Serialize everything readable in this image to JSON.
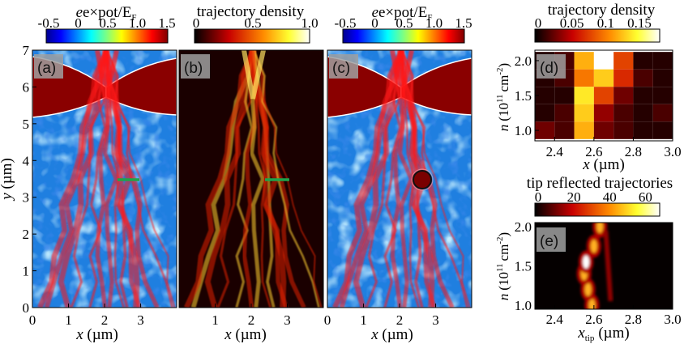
{
  "chart_data": [
    {
      "id": "a",
      "type": "heatmap",
      "panel_label": "(a)",
      "colorbar": {
        "title": "e×pot/E_F",
        "title_main": "e×pot/E",
        "title_sub": "F",
        "ticks": [
          "-0.5",
          "0",
          "0.5",
          "1.0",
          "1.5"
        ],
        "range": [
          -0.5,
          1.5
        ],
        "colormap": "jet"
      },
      "xlabel": "x (µm)",
      "ylabel": "y (µm)",
      "xticks": [
        "0",
        "1",
        "2",
        "3"
      ],
      "yticks": [
        "0",
        "1",
        "2",
        "3",
        "4",
        "5",
        "6",
        "7"
      ],
      "xlim": [
        0,
        4
      ],
      "ylim": [
        0,
        7
      ],
      "tip_marker": {
        "x": 2.6,
        "y": 3.5
      }
    },
    {
      "id": "b",
      "type": "heatmap",
      "panel_label": "(b)",
      "colorbar": {
        "title": "trajectory density",
        "ticks": [
          "0",
          "0.5",
          "1.0"
        ],
        "range": [
          0,
          1
        ],
        "colormap": "hot"
      },
      "xlabel": "x (µm)",
      "xticks": [
        "1",
        "2",
        "3"
      ],
      "xlim": [
        0,
        4
      ],
      "ylim": [
        0,
        7
      ],
      "tip_marker": {
        "x": 2.6,
        "y": 3.5
      }
    },
    {
      "id": "c",
      "type": "heatmap",
      "panel_label": "(c)",
      "colorbar": {
        "title": "e×pot/E_F",
        "title_main": "e×pot/E",
        "title_sub": "F",
        "ticks": [
          "-0.5",
          "0",
          "0.5",
          "1.0",
          "1.5"
        ],
        "range": [
          -0.5,
          1.5
        ],
        "colormap": "jet"
      },
      "xlabel": "x (µm)",
      "xticks": [
        "0",
        "1",
        "2",
        "3"
      ],
      "xlim": [
        0,
        4
      ],
      "ylim": [
        0,
        7
      ],
      "tip": {
        "x": 2.6,
        "y": 3.5
      }
    },
    {
      "id": "d",
      "type": "heatmap",
      "panel_label": "(d)",
      "colorbar": {
        "title": "trajectory density",
        "ticks": [
          "0",
          "0.05",
          "0.1",
          "0.15"
        ],
        "range": [
          0,
          0.18
        ],
        "colormap": "hot"
      },
      "xlabel": "x (µm)",
      "ylabel": "n (10^11 cm^-2)",
      "ylabel_main": "n",
      "ylabel_unit": "(10",
      "ylabel_exp": "11",
      "ylabel_unit2": "cm",
      "ylabel_exp2": "-2",
      "ylabel_close": ")",
      "xticks": [
        "2.4",
        "2.6",
        "2.8",
        "3.0"
      ],
      "yticks": [
        "1.0",
        "1.5",
        "2.0"
      ],
      "xlim": [
        2.3,
        3.0
      ],
      "ylim": [
        0.85,
        2.15
      ],
      "cells_x": [
        2.35,
        2.45,
        2.55,
        2.65,
        2.75,
        2.85,
        2.95
      ],
      "cells_y": [
        2.0,
        1.75,
        1.5,
        1.25,
        1.0
      ],
      "z": [
        [
          0.01,
          0.02,
          0.12,
          0.18,
          0.08,
          0.01,
          0.01
        ],
        [
          0.01,
          0.02,
          0.1,
          0.13,
          0.07,
          0.02,
          0.01
        ],
        [
          0.01,
          0.01,
          0.14,
          0.08,
          0.03,
          0.01,
          0.01
        ],
        [
          0.01,
          0.02,
          0.13,
          0.04,
          0.02,
          0.01,
          0.02
        ],
        [
          0.03,
          0.02,
          0.12,
          0.03,
          0.02,
          0.01,
          0.01
        ]
      ]
    },
    {
      "id": "e",
      "type": "heatmap",
      "panel_label": "(e)",
      "colorbar": {
        "title": "tip reflected trajectories",
        "ticks": [
          "0",
          "20",
          "40",
          "60"
        ],
        "range": [
          0,
          68
        ],
        "colormap": "hot"
      },
      "xlabel": "x_tip (µm)",
      "xlabel_main": "x",
      "xlabel_sub": "tip",
      "xlabel_unit": "(µm)",
      "ylabel": "n (10^11 cm^-2)",
      "ylabel_main": "n",
      "ylabel_unit": "(10",
      "ylabel_exp": "11",
      "ylabel_unit2": "cm",
      "ylabel_exp2": "-2",
      "ylabel_close": ")",
      "xticks": [
        "2.4",
        "2.6",
        "2.8",
        "3.0"
      ],
      "yticks": [
        "1.0",
        "1.5",
        "2.0"
      ],
      "xlim": [
        2.3,
        3.0
      ],
      "ylim": [
        0.95,
        2.05
      ]
    }
  ]
}
